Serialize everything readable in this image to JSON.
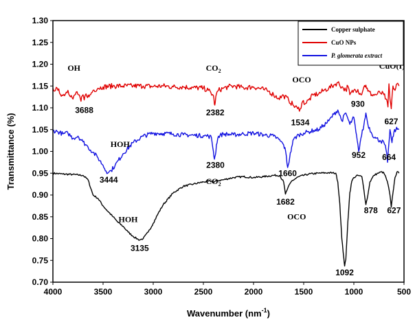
{
  "chart_data": {
    "type": "line",
    "xlabel": "Wavenumber (nm",
    "xlabel_sup": "-1",
    "xlabel_end": ")",
    "ylabel": "Transmittance (%)",
    "xlim": [
      4000,
      500
    ],
    "ylim": [
      0.7,
      1.3
    ],
    "x_ticks": [
      "4000",
      "3500",
      "3000",
      "2500",
      "2000",
      "1500",
      "1000",
      "500"
    ],
    "y_ticks": [
      "0.70",
      "0.75",
      "0.80",
      "0.85",
      "0.90",
      "0.95",
      "1.00",
      "1.05",
      "1.10",
      "1.15",
      "1.20",
      "1.25",
      "1.30"
    ],
    "legend_position": "top-right",
    "series": [
      {
        "name": "Copper sulphate",
        "color": "#000000",
        "x": [
          4000,
          3900,
          3800,
          3700,
          3650,
          3600,
          3550,
          3500,
          3450,
          3400,
          3350,
          3300,
          3250,
          3200,
          3150,
          3135,
          3100,
          3050,
          3000,
          2950,
          2900,
          2800,
          2700,
          2600,
          2500,
          2420,
          2400,
          2380,
          2300,
          2200,
          2100,
          2000,
          1900,
          1800,
          1740,
          1700,
          1682,
          1660,
          1620,
          1550,
          1450,
          1350,
          1250,
          1180,
          1160,
          1140,
          1120,
          1100,
          1092,
          1080,
          1060,
          1040,
          1020,
          1000,
          960,
          920,
          900,
          880,
          860,
          840,
          800,
          760,
          720,
          700,
          680,
          660,
          640,
          627,
          610,
          590,
          570,
          550
        ],
        "y": [
          0.95,
          0.948,
          0.947,
          0.945,
          0.935,
          0.9,
          0.892,
          0.875,
          0.862,
          0.85,
          0.837,
          0.828,
          0.815,
          0.805,
          0.798,
          0.797,
          0.8,
          0.815,
          0.835,
          0.858,
          0.878,
          0.905,
          0.92,
          0.925,
          0.93,
          0.932,
          0.928,
          0.932,
          0.935,
          0.94,
          0.942,
          0.94,
          0.942,
          0.945,
          0.945,
          0.93,
          0.902,
          0.915,
          0.932,
          0.942,
          0.948,
          0.95,
          0.951,
          0.95,
          0.93,
          0.88,
          0.8,
          0.755,
          0.737,
          0.752,
          0.838,
          0.905,
          0.932,
          0.94,
          0.945,
          0.942,
          0.912,
          0.878,
          0.9,
          0.93,
          0.945,
          0.95,
          0.953,
          0.95,
          0.94,
          0.925,
          0.9,
          0.872,
          0.905,
          0.94,
          0.953,
          0.95
        ]
      },
      {
        "name": "CuO NPs",
        "color": "#e00000",
        "x": [
          4000,
          3950,
          3900,
          3850,
          3800,
          3760,
          3720,
          3700,
          3688,
          3670,
          3640,
          3600,
          3550,
          3500,
          3400,
          3300,
          3200,
          3100,
          3000,
          2900,
          2800,
          2700,
          2600,
          2500,
          2450,
          2400,
          2390,
          2382,
          2370,
          2350,
          2300,
          2250,
          2200,
          2100,
          2000,
          1900,
          1850,
          1800,
          1750,
          1700,
          1650,
          1600,
          1560,
          1534,
          1510,
          1480,
          1450,
          1400,
          1350,
          1300,
          1250,
          1200,
          1160,
          1120,
          1080,
          1060,
          1040,
          1000,
          960,
          930,
          900,
          880,
          860,
          820,
          780,
          740,
          700,
          680,
          660,
          650,
          640,
          627,
          610,
          590,
          570,
          550
        ],
        "y": [
          1.145,
          1.14,
          1.128,
          1.14,
          1.12,
          1.137,
          1.115,
          1.13,
          1.118,
          1.132,
          1.125,
          1.14,
          1.145,
          1.148,
          1.15,
          1.15,
          1.15,
          1.15,
          1.149,
          1.15,
          1.148,
          1.148,
          1.146,
          1.145,
          1.14,
          1.128,
          1.108,
          1.112,
          1.132,
          1.14,
          1.145,
          1.148,
          1.15,
          1.146,
          1.148,
          1.142,
          1.138,
          1.13,
          1.122,
          1.128,
          1.118,
          1.105,
          1.098,
          1.098,
          1.115,
          1.11,
          1.118,
          1.13,
          1.132,
          1.14,
          1.145,
          1.152,
          1.158,
          1.148,
          1.14,
          1.15,
          1.13,
          1.14,
          1.142,
          1.13,
          1.148,
          1.152,
          1.138,
          1.13,
          1.13,
          1.135,
          1.13,
          1.12,
          1.102,
          1.155,
          1.12,
          1.098,
          1.15,
          1.14,
          1.155,
          1.15
        ]
      },
      {
        "name": "P. glomerata extract",
        "color": "#1010e0",
        "x": [
          4000,
          3950,
          3900,
          3850,
          3800,
          3750,
          3700,
          3650,
          3600,
          3550,
          3500,
          3470,
          3444,
          3420,
          3380,
          3300,
          3200,
          3100,
          3000,
          2900,
          2800,
          2700,
          2600,
          2500,
          2450,
          2420,
          2400,
          2390,
          2380,
          2370,
          2350,
          2300,
          2200,
          2100,
          2000,
          1900,
          1800,
          1750,
          1700,
          1680,
          1660,
          1640,
          1620,
          1600,
          1550,
          1500,
          1450,
          1400,
          1350,
          1300,
          1250,
          1200,
          1160,
          1120,
          1080,
          1040,
          1000,
          980,
          952,
          930,
          900,
          880,
          860,
          820,
          780,
          740,
          700,
          680,
          664,
          650,
          640,
          620,
          600,
          580,
          560,
          550
        ],
        "y": [
          1.048,
          1.045,
          1.04,
          1.042,
          1.03,
          1.035,
          1.022,
          1.01,
          0.998,
          0.985,
          0.968,
          0.955,
          0.952,
          0.956,
          0.968,
          0.995,
          1.02,
          1.035,
          1.042,
          1.041,
          1.04,
          1.038,
          1.037,
          1.036,
          1.035,
          1.032,
          1.0,
          0.982,
          0.992,
          1.015,
          1.035,
          1.04,
          1.038,
          1.04,
          1.042,
          1.038,
          1.035,
          1.028,
          1.015,
          1.0,
          0.963,
          0.985,
          1.01,
          1.028,
          1.038,
          1.042,
          1.045,
          1.048,
          1.05,
          1.06,
          1.07,
          1.085,
          1.095,
          1.07,
          1.088,
          1.062,
          1.078,
          1.045,
          1.0,
          1.03,
          1.06,
          1.088,
          1.062,
          1.04,
          1.03,
          1.025,
          1.02,
          1.005,
          0.975,
          1.02,
          1.05,
          1.02,
          1.045,
          1.05,
          1.052,
          1.05
        ]
      }
    ],
    "annotations": [
      {
        "text": "OH",
        "x": 3790,
        "y": 1.185,
        "style": "label"
      },
      {
        "text": "3688",
        "x": 3688,
        "y": 1.088,
        "style": "num"
      },
      {
        "text": "CO",
        "sub": "2",
        "x": 2400,
        "y": 1.185,
        "style": "label"
      },
      {
        "text": "2382",
        "x": 2382,
        "y": 1.083,
        "style": "num"
      },
      {
        "text": "OCO",
        "x": 1520,
        "y": 1.158,
        "style": "label"
      },
      {
        "text": "1534",
        "x": 1534,
        "y": 1.06,
        "style": "num"
      },
      {
        "text": "930",
        "x": 960,
        "y": 1.102,
        "style": "num"
      },
      {
        "text": "CuO(I)",
        "x": 620,
        "y": 1.19,
        "style": "label"
      },
      {
        "text": "627",
        "x": 627,
        "y": 1.062,
        "style": "num"
      },
      {
        "text": "HOH",
        "x": 3330,
        "y": 1.01,
        "style": "label"
      },
      {
        "text": "3444",
        "x": 3444,
        "y": 0.928,
        "style": "num"
      },
      {
        "text": "2380",
        "x": 2380,
        "y": 0.962,
        "style": "num"
      },
      {
        "text": "1660",
        "x": 1660,
        "y": 0.943,
        "style": "num"
      },
      {
        "text": "952",
        "x": 952,
        "y": 0.985,
        "style": "num"
      },
      {
        "text": "664",
        "x": 650,
        "y": 0.98,
        "style": "num"
      },
      {
        "text": "CO",
        "sub": "2",
        "x": 2400,
        "y": 0.925,
        "style": "label"
      },
      {
        "text": "HOH",
        "x": 3250,
        "y": 0.838,
        "style": "label"
      },
      {
        "text": "3135",
        "x": 3135,
        "y": 0.772,
        "style": "num"
      },
      {
        "text": "1682",
        "x": 1682,
        "y": 0.878,
        "style": "num"
      },
      {
        "text": "OCO",
        "x": 1570,
        "y": 0.844,
        "style": "label"
      },
      {
        "text": "878",
        "x": 830,
        "y": 0.858,
        "style": "num"
      },
      {
        "text": "627",
        "x": 600,
        "y": 0.858,
        "style": "num"
      },
      {
        "text": "1092",
        "x": 1092,
        "y": 0.716,
        "style": "num"
      }
    ]
  }
}
